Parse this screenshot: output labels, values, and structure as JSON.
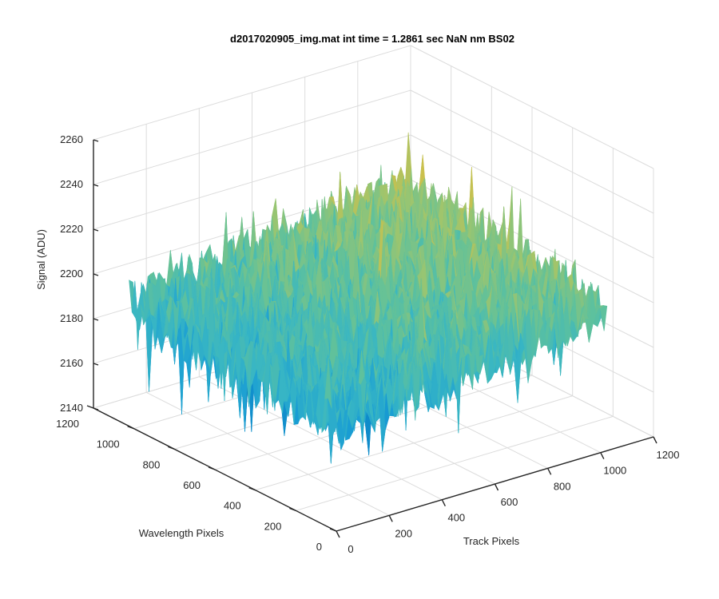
{
  "chart_data": {
    "type": "surface3d",
    "title": "d2017020905_img.mat int time = 1.2861 sec  NaN nm BS02",
    "xlabel": "Track Pixels",
    "ylabel": "Wavelength Pixels",
    "zlabel": "Signal (ADU)",
    "xlim": [
      0,
      1200
    ],
    "ylim": [
      0,
      1200
    ],
    "zlim": [
      2140,
      2260
    ],
    "xticks": [
      "0",
      "200",
      "400",
      "600",
      "800",
      "1000",
      "1200"
    ],
    "yticks": [
      "0",
      "200",
      "400",
      "600",
      "800",
      "1000",
      "1200"
    ],
    "zticks": [
      "2140",
      "2160",
      "2180",
      "2200",
      "2220",
      "2240",
      "2260"
    ],
    "grid": true,
    "colormap": [
      "#0072bd",
      "#1a9ed4",
      "#38b6c4",
      "#5fc19c",
      "#9cc56f",
      "#d4bf45",
      "#f2c22b"
    ],
    "data_extent": {
      "x": [
        0,
        1024
      ],
      "y": [
        0,
        1024
      ]
    },
    "surface_trend": {
      "base_signal_at_origin": 2188,
      "slope_per_track_pixel": 0.016,
      "slope_per_wavelength_pixel": 0.006,
      "noise_amplitude": 14
    }
  }
}
